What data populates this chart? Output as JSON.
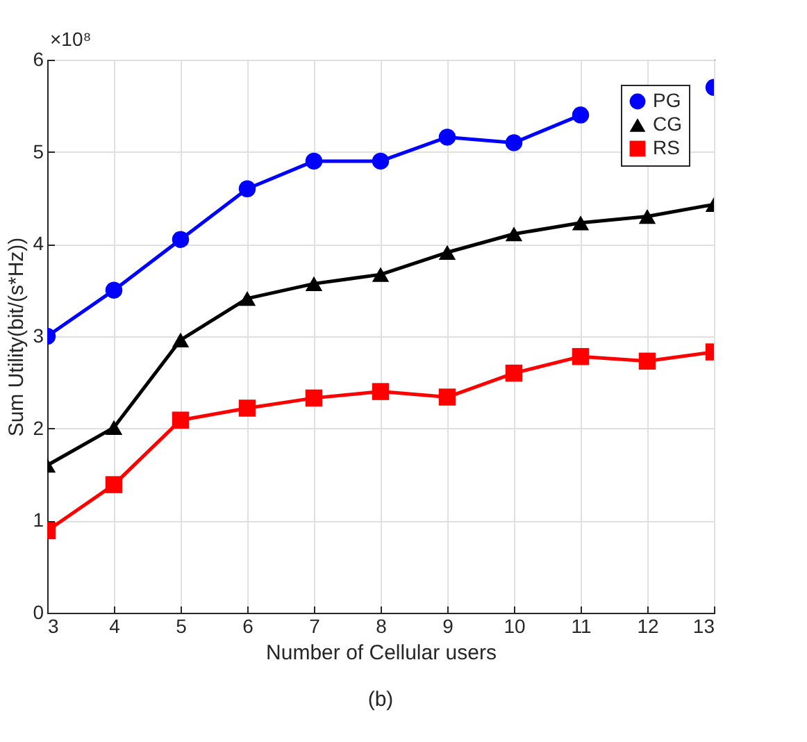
{
  "chart_data": {
    "type": "line",
    "xlabel": "Number of Cellular users",
    "ylabel": "Sum Utility(bit/(s*Hz))",
    "annotations": [
      "×10⁸",
      "(b)"
    ],
    "x": [
      3,
      4,
      5,
      6,
      7,
      8,
      9,
      10,
      11,
      12,
      13
    ],
    "series": [
      {
        "name": "PG",
        "color": "#0000ff",
        "marker": "circle",
        "values": [
          3.0,
          3.5,
          4.05,
          4.6,
          4.9,
          4.9,
          5.16,
          5.1,
          5.4,
          null,
          5.7
        ]
      },
      {
        "name": "CG",
        "color": "#000000",
        "marker": "triangle",
        "values": [
          1.6,
          2.01,
          2.96,
          3.41,
          3.57,
          3.67,
          3.91,
          4.11,
          4.23,
          4.3,
          4.43
        ]
      },
      {
        "name": "RS",
        "color": "#ff0000",
        "marker": "square",
        "values": [
          0.89,
          1.39,
          2.09,
          2.22,
          2.33,
          2.4,
          2.34,
          2.6,
          2.78,
          2.73,
          2.83
        ]
      }
    ],
    "xlim": [
      3,
      13
    ],
    "xticks": [
      3,
      4,
      5,
      6,
      7,
      8,
      9,
      10,
      11,
      12,
      13
    ],
    "ylim": [
      0,
      6
    ],
    "yticks": [
      0,
      1,
      2,
      3,
      4,
      5,
      6
    ],
    "grid": true,
    "legend": "top right",
    "line_style": "solid"
  }
}
